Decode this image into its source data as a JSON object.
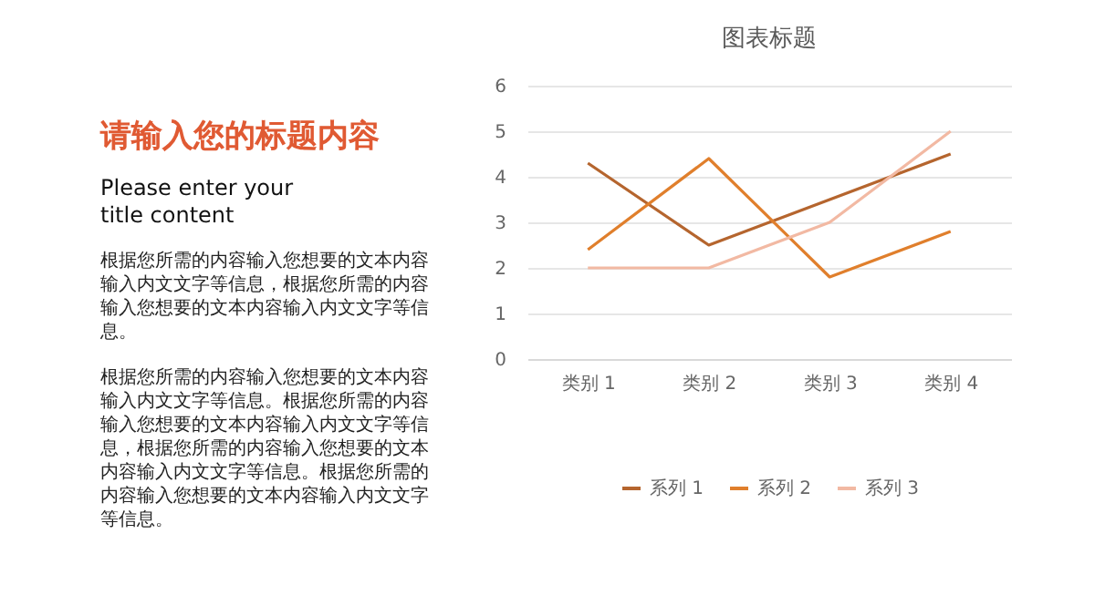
{
  "chart_data": {
    "type": "line",
    "title": "图表标题",
    "categories": [
      "类别 1",
      "类别 2",
      "类别 3",
      "类别 4"
    ],
    "series": [
      {
        "name": "系列 1",
        "color": "#b5652e",
        "values": [
          4.3,
          2.5,
          3.5,
          4.5
        ]
      },
      {
        "name": "系列 2",
        "color": "#e07f2c",
        "values": [
          2.4,
          4.4,
          1.8,
          2.8
        ]
      },
      {
        "name": "系列 3",
        "color": "#f2b9a3",
        "values": [
          2,
          2,
          3,
          5
        ]
      }
    ],
    "ylim": [
      0,
      6
    ],
    "yticks": [
      0,
      1,
      2,
      3,
      4,
      5,
      6
    ],
    "grid": "y",
    "legend": "bottom",
    "annotations": [
      "请输入您的标题内容",
      "Please enter your title content",
      "根据您所需的内容输入您想要的文本内容输入内文文字等信息，根据您所需的内容输入您想要的文本内容输入内文文字等信息。",
      "根据您所需的内容输入您想要的文本内容输入内文文字等信息。根据您所需的内容输入您想要的文本内容输入内文文字等信息，根据您所需的内容输入您想要的文本内容输入内文文字等信息。根据您所需的内容输入您想要的文本内容输入内文文字等信息。"
    ]
  }
}
